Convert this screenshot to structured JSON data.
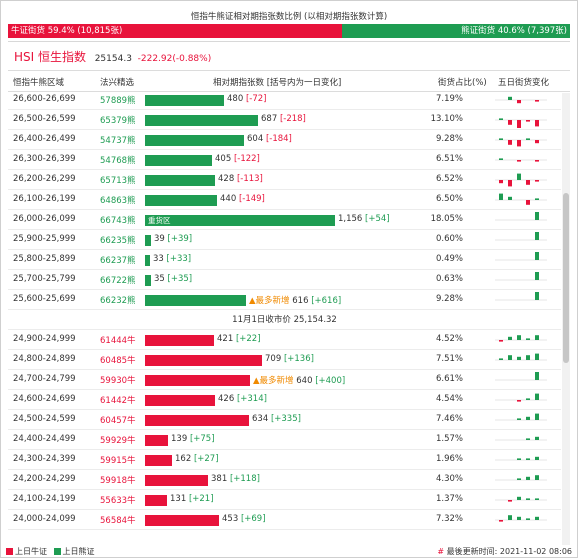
{
  "header": {
    "title": "恒指牛熊证相对期指张数比例 (以相对期指张数计算)",
    "bull_label": "牛证街货 59.4% (10,815张)",
    "bear_label": "熊证街货 40.6% (7,397张)",
    "bull_ratio": 0.594,
    "bear_ratio": 0.406
  },
  "index": {
    "name": "HSI 恒生指数",
    "value": "25154.3",
    "change": "-222.92(-0.88%)"
  },
  "columns": {
    "range": "恒指牛熊区域",
    "code": "法兴精选",
    "qty": "相对期指张数 [括号内为一日变化]",
    "pct": "街货占比(%)",
    "spark": "五日街货变化"
  },
  "colors": {
    "bull": "#e8133b",
    "bear": "#1e9c52",
    "mark": "#f08a00"
  },
  "separator": "11月1日收市价 25,154.32",
  "marks": {
    "heavy": "重货区",
    "most_new": "▲最多新增"
  },
  "bear_rows": [
    {
      "range": "26,600-26,699",
      "code": "57889熊",
      "qty": "480",
      "chg": "[-72]",
      "value": 480,
      "pct": "7.19%",
      "spark": [
        0,
        2,
        -2,
        0,
        -1
      ]
    },
    {
      "range": "26,500-26,599",
      "code": "65379熊",
      "qty": "687",
      "chg": "[-218]",
      "value": 687,
      "pct": "13.10%",
      "spark": [
        1,
        -3,
        -5,
        -1,
        -4
      ]
    },
    {
      "range": "26,400-26,499",
      "code": "54737熊",
      "qty": "604",
      "chg": "[-184]",
      "value": 604,
      "pct": "9.28%",
      "spark": [
        1,
        -3,
        -4,
        1,
        -2
      ]
    },
    {
      "range": "26,300-26,399",
      "code": "54768熊",
      "qty": "405",
      "chg": "[-122]",
      "value": 405,
      "pct": "6.51%",
      "spark": [
        1,
        0,
        -1,
        0,
        -1
      ]
    },
    {
      "range": "26,200-26,299",
      "code": "65713熊",
      "qty": "428",
      "chg": "[-113]",
      "value": 428,
      "pct": "6.52%",
      "spark": [
        -2,
        -4,
        4,
        -3,
        -1
      ]
    },
    {
      "range": "26,100-26,199",
      "code": "64863熊",
      "qty": "440",
      "chg": "[-149]",
      "value": 440,
      "pct": "6.50%",
      "spark": [
        4,
        2,
        0,
        -3,
        1
      ]
    },
    {
      "range": "26,000-26,099",
      "code": "66743熊",
      "qty": "1,156",
      "chg": "[+54]",
      "value": 1156,
      "pct": "18.05%",
      "spark": [
        0,
        0,
        0,
        0,
        5
      ],
      "tag": "heavy"
    },
    {
      "range": "25,900-25,999",
      "code": "66235熊",
      "qty": "39",
      "chg": "[+39]",
      "value": 39,
      "pct": "0.60%",
      "spark": [
        0,
        0,
        0,
        0,
        5
      ]
    },
    {
      "range": "25,800-25,899",
      "code": "66237熊",
      "qty": "33",
      "chg": "[+33]",
      "value": 33,
      "pct": "0.49%",
      "spark": [
        0,
        0,
        0,
        0,
        5
      ]
    },
    {
      "range": "25,700-25,799",
      "code": "66722熊",
      "qty": "35",
      "chg": "[+35]",
      "value": 35,
      "pct": "0.63%",
      "spark": [
        0,
        0,
        0,
        0,
        5
      ]
    },
    {
      "range": "25,600-25,699",
      "code": "66232熊",
      "qty": "616",
      "chg": "[+616]",
      "value": 616,
      "pct": "9.28%",
      "spark": [
        0,
        0,
        0,
        0,
        5
      ],
      "tag": "most_new"
    }
  ],
  "bull_rows": [
    {
      "range": "24,900-24,999",
      "code": "61444牛",
      "qty": "421",
      "chg": "[+22]",
      "value": 421,
      "pct": "4.52%",
      "spark": [
        -1,
        2,
        3,
        1,
        3
      ]
    },
    {
      "range": "24,800-24,899",
      "code": "60485牛",
      "qty": "709",
      "chg": "[+136]",
      "value": 709,
      "pct": "7.51%",
      "spark": [
        1,
        3,
        2,
        3,
        4
      ]
    },
    {
      "range": "24,700-24,799",
      "code": "59930牛",
      "qty": "640",
      "chg": "[+400]",
      "value": 640,
      "pct": "6.61%",
      "spark": [
        0,
        0,
        0,
        0,
        5
      ],
      "tag": "most_new"
    },
    {
      "range": "24,600-24,699",
      "code": "61442牛",
      "qty": "426",
      "chg": "[+314]",
      "value": 426,
      "pct": "4.54%",
      "spark": [
        0,
        0,
        -1,
        1,
        4
      ]
    },
    {
      "range": "24,500-24,599",
      "code": "60457牛",
      "qty": "634",
      "chg": "[+335]",
      "value": 634,
      "pct": "7.46%",
      "spark": [
        0,
        0,
        1,
        2,
        4
      ]
    },
    {
      "range": "24,400-24,499",
      "code": "59929牛",
      "qty": "139",
      "chg": "[+75]",
      "value": 139,
      "pct": "1.57%",
      "spark": [
        0,
        0,
        0,
        1,
        2
      ]
    },
    {
      "range": "24,300-24,399",
      "code": "59915牛",
      "qty": "162",
      "chg": "[+27]",
      "value": 162,
      "pct": "1.96%",
      "spark": [
        0,
        0,
        1,
        1,
        2
      ]
    },
    {
      "range": "24,200-24,299",
      "code": "59918牛",
      "qty": "381",
      "chg": "[+118]",
      "value": 381,
      "pct": "4.30%",
      "spark": [
        0,
        0,
        1,
        2,
        3
      ]
    },
    {
      "range": "24,100-24,199",
      "code": "55633牛",
      "qty": "131",
      "chg": "[+21]",
      "value": 131,
      "pct": "1.37%",
      "spark": [
        0,
        -1,
        2,
        1,
        1
      ]
    },
    {
      "range": "24,000-24,099",
      "code": "56584牛",
      "qty": "453",
      "chg": "[+69]",
      "value": 453,
      "pct": "7.32%",
      "spark": [
        -1,
        3,
        2,
        1,
        2
      ]
    }
  ],
  "footer": {
    "bull_legend": "上日牛证",
    "bear_legend": "上日熊证",
    "updated_hash": "#",
    "updated": "最後更新时间: 2021-11-02 08:06"
  }
}
